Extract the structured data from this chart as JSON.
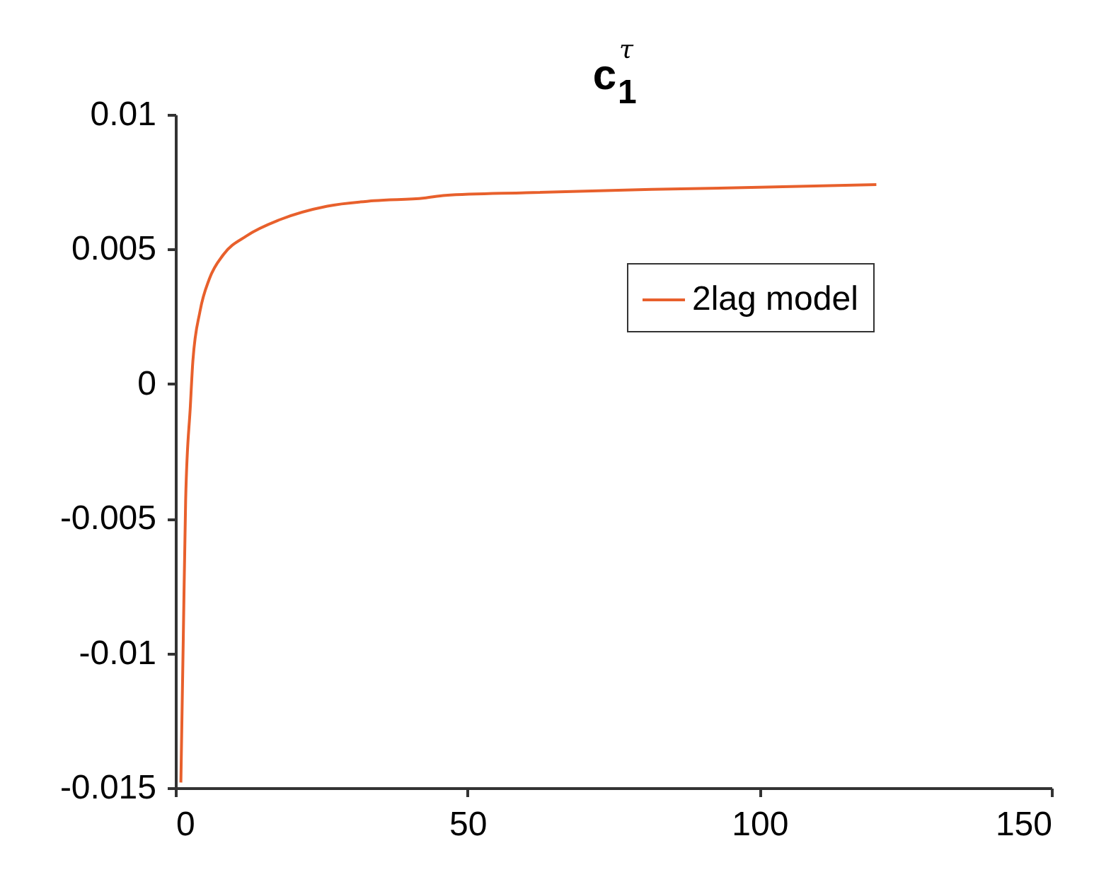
{
  "chart_data": {
    "type": "line",
    "title": "c$_{1}$$^{τ}$",
    "series": [
      {
        "name": "2lag model",
        "color": "#e8602c",
        "x": [
          0.92,
          1.33,
          1.74,
          2.55,
          2.96,
          4.2,
          5.8,
          8.2,
          12.2,
          17.9,
          26,
          34,
          42.6,
          46.2,
          60,
          81.5,
          100,
          120
        ],
        "values": [
          -0.0148,
          -0.0095,
          -0.0043,
          -0.0008,
          0.0008,
          0.0027,
          0.0039,
          0.0048,
          0.0055,
          0.0061,
          0.0066,
          0.0068,
          0.0069,
          0.007,
          0.0071,
          0.00722,
          0.0073,
          0.0074
        ]
      }
    ],
    "xlim": [
      0,
      150
    ],
    "xticks": [
      0,
      50,
      100,
      150
    ],
    "ylim": [
      -0.015,
      0.01
    ],
    "yticks": [
      -0.015,
      -0.01,
      -0.005,
      0,
      0.005,
      0.01
    ],
    "grid": false,
    "legend": "top right",
    "line_style": "solid",
    "marker": "none"
  }
}
